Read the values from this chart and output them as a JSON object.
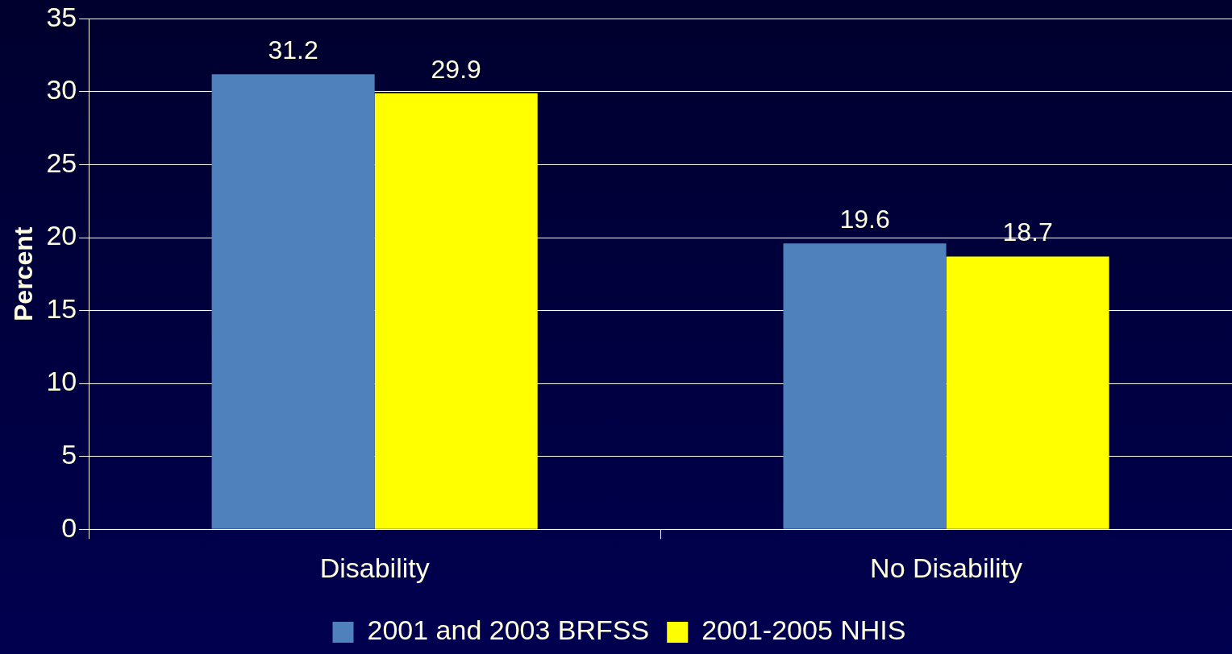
{
  "chart_data": {
    "type": "bar",
    "ylabel": "Percent",
    "categories": [
      "Disability",
      "No Disability"
    ],
    "series": [
      {
        "name": "2001 and 2003 BRFSS",
        "color": "#4f81bd",
        "values": [
          31.2,
          19.6
        ]
      },
      {
        "name": "2001-2005 NHIS",
        "color": "#ffff00",
        "values": [
          29.9,
          18.7
        ]
      }
    ],
    "ylim": [
      0,
      35
    ],
    "yticks": [
      0,
      5,
      10,
      15,
      20,
      25,
      30,
      35
    ],
    "grid": "y",
    "legend": "bottom",
    "data_labels": true
  }
}
